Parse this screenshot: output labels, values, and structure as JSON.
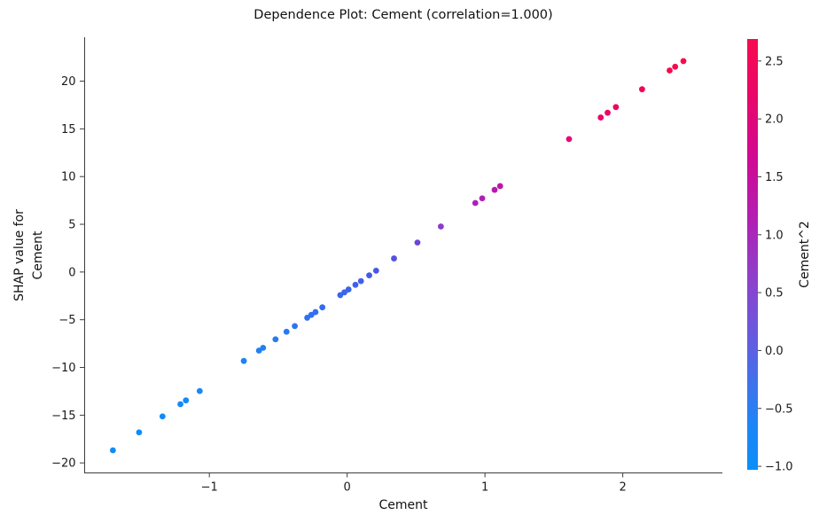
{
  "figure": {
    "title": "Dependence Plot: Cement (correlation=1.000)",
    "xlabel": "Cement",
    "ylabel_lines": [
      "SHAP value for",
      "Cement"
    ],
    "colorbar_label": "Cement^2"
  },
  "chart_data": {
    "type": "scatter",
    "title": "Dependence Plot: Cement (correlation=1.000)",
    "xlabel": "Cement",
    "ylabel": "SHAP value for Cement",
    "xlim": [
      -1.905,
      2.723
    ],
    "ylim": [
      -21.05,
      24.6
    ],
    "grid": false,
    "x_ticks": [
      {
        "value": -1,
        "label": "−1"
      },
      {
        "value": 0,
        "label": "0"
      },
      {
        "value": 1,
        "label": "1"
      },
      {
        "value": 2,
        "label": "2"
      }
    ],
    "y_ticks": [
      {
        "value": 20,
        "label": "20"
      },
      {
        "value": 15,
        "label": "15"
      },
      {
        "value": 10,
        "label": "10"
      },
      {
        "value": 5,
        "label": "5"
      },
      {
        "value": 0,
        "label": "0"
      },
      {
        "value": -5,
        "label": "−5"
      },
      {
        "value": -10,
        "label": "−10"
      },
      {
        "value": -15,
        "label": "−15"
      },
      {
        "value": -20,
        "label": "−20"
      }
    ],
    "points": [
      {
        "x": -1.7,
        "y": -18.68,
        "color": "#0e8df9"
      },
      {
        "x": -1.51,
        "y": -16.8,
        "color": "#108cf8"
      },
      {
        "x": -1.34,
        "y": -15.13,
        "color": "#128bf8"
      },
      {
        "x": -1.21,
        "y": -13.85,
        "color": "#148af7"
      },
      {
        "x": -1.17,
        "y": -13.45,
        "color": "#158af7"
      },
      {
        "x": -1.07,
        "y": -12.47,
        "color": "#1789f6"
      },
      {
        "x": -0.75,
        "y": -9.32,
        "color": "#1e83f4"
      },
      {
        "x": -0.64,
        "y": -8.23,
        "color": "#2180f3"
      },
      {
        "x": -0.61,
        "y": -7.94,
        "color": "#227ff3"
      },
      {
        "x": -0.52,
        "y": -7.05,
        "color": "#257cf2"
      },
      {
        "x": -0.44,
        "y": -6.26,
        "color": "#2879f1"
      },
      {
        "x": -0.38,
        "y": -5.67,
        "color": "#2a76f0"
      },
      {
        "x": -0.29,
        "y": -4.79,
        "color": "#2e72ef"
      },
      {
        "x": -0.26,
        "y": -4.49,
        "color": "#2f71ee"
      },
      {
        "x": -0.23,
        "y": -4.2,
        "color": "#306fee"
      },
      {
        "x": -0.18,
        "y": -3.7,
        "color": "#336ced"
      },
      {
        "x": -0.05,
        "y": -2.42,
        "color": "#3a66ea"
      },
      {
        "x": -0.02,
        "y": -2.13,
        "color": "#3b65ea"
      },
      {
        "x": 0.01,
        "y": -1.83,
        "color": "#3c64e9"
      },
      {
        "x": 0.06,
        "y": -1.34,
        "color": "#3f61e8"
      },
      {
        "x": 0.1,
        "y": -0.95,
        "color": "#415fe7"
      },
      {
        "x": 0.16,
        "y": -0.35,
        "color": "#455be5"
      },
      {
        "x": 0.21,
        "y": 0.14,
        "color": "#4858e4"
      },
      {
        "x": 0.34,
        "y": 1.42,
        "color": "#5650df"
      },
      {
        "x": 0.51,
        "y": 3.09,
        "color": "#6c45d8"
      },
      {
        "x": 0.68,
        "y": 4.77,
        "color": "#8c3bca"
      },
      {
        "x": 0.93,
        "y": 7.23,
        "color": "#ab22bb"
      },
      {
        "x": 0.98,
        "y": 7.72,
        "color": "#b01fb7"
      },
      {
        "x": 1.07,
        "y": 8.61,
        "color": "#b81aae"
      },
      {
        "x": 1.11,
        "y": 9.0,
        "color": "#bb18aa"
      },
      {
        "x": 1.61,
        "y": 13.93,
        "color": "#e40a79"
      },
      {
        "x": 1.84,
        "y": 16.19,
        "color": "#ea0868"
      },
      {
        "x": 1.89,
        "y": 16.69,
        "color": "#eb0765"
      },
      {
        "x": 1.95,
        "y": 17.28,
        "color": "#ec0661"
      },
      {
        "x": 2.14,
        "y": 19.15,
        "color": "#f00856"
      },
      {
        "x": 2.34,
        "y": 21.12,
        "color": "#f40a4f"
      },
      {
        "x": 2.38,
        "y": 21.51,
        "color": "#f50a4e"
      },
      {
        "x": 2.44,
        "y": 22.1,
        "color": "#f60b4c"
      }
    ],
    "colorbar": {
      "label": "Cement^2",
      "vmin": -1.03,
      "vmax": 2.69,
      "ticks": [
        {
          "value": 2.5,
          "label": "2.5"
        },
        {
          "value": 2.0,
          "label": "2.0"
        },
        {
          "value": 1.5,
          "label": "1.5"
        },
        {
          "value": 1.0,
          "label": "1.0"
        },
        {
          "value": 0.5,
          "label": "0.5"
        },
        {
          "value": 0.0,
          "label": "0.0"
        },
        {
          "value": -0.5,
          "label": "−0.5"
        },
        {
          "value": -1.0,
          "label": "−1.0"
        }
      ],
      "gradient": [
        {
          "offset": 0.0,
          "color": "#f70b4f"
        },
        {
          "offset": 0.12,
          "color": "#ea0766"
        },
        {
          "offset": 0.28,
          "color": "#d00995"
        },
        {
          "offset": 0.42,
          "color": "#b120b4"
        },
        {
          "offset": 0.55,
          "color": "#8f3fc9"
        },
        {
          "offset": 0.68,
          "color": "#6a58dd"
        },
        {
          "offset": 0.8,
          "color": "#3f72ec"
        },
        {
          "offset": 0.9,
          "color": "#1d86f6"
        },
        {
          "offset": 1.0,
          "color": "#0a8ff9"
        }
      ]
    }
  }
}
